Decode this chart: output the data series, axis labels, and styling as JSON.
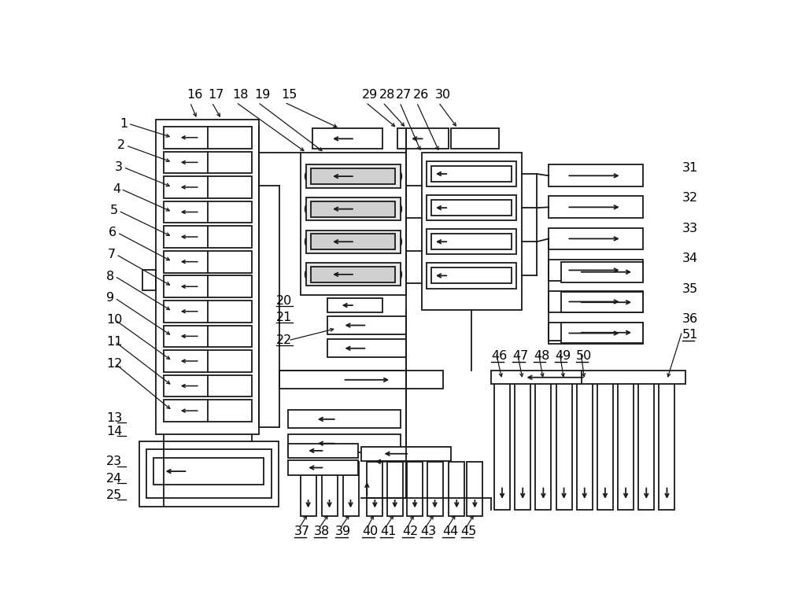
{
  "bg": "#ffffff",
  "lc": "#1a1a1a",
  "lw": 1.3,
  "fig_w": 10.0,
  "fig_h": 7.83
}
